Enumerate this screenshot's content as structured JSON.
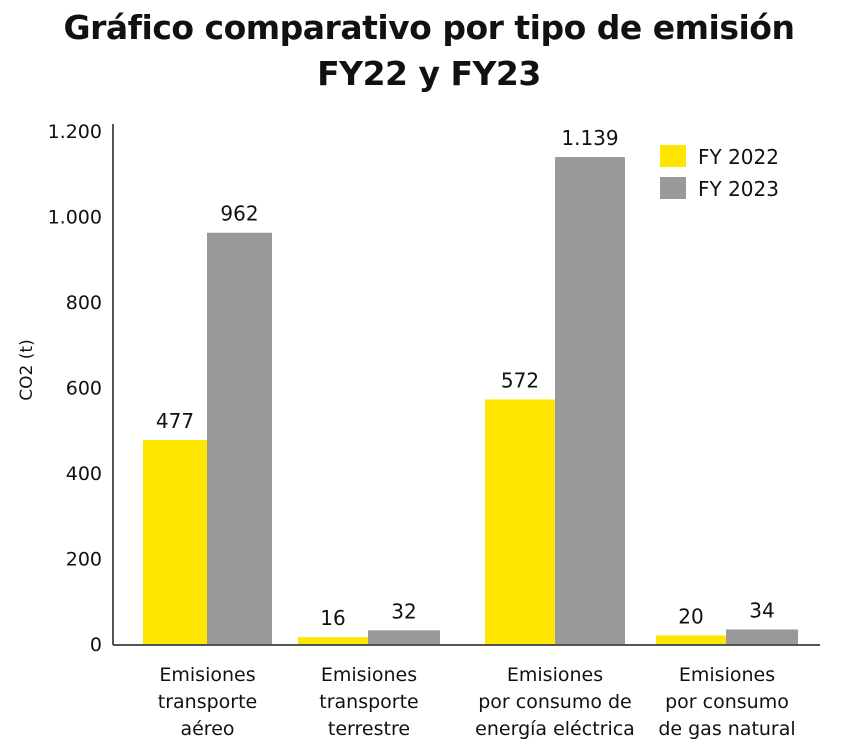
{
  "chart_data": {
    "type": "bar",
    "title": "Gráfico comparativo por tipo de emisión",
    "subtitle": "FY22 y FY23",
    "ylabel": "CO2 (t)",
    "xlabel": "",
    "ylim": [
      0,
      1200
    ],
    "yticks": [
      0,
      200,
      400,
      600,
      800,
      1000,
      1200
    ],
    "ytick_labels": [
      "0",
      "200",
      "400",
      "600",
      "800",
      "1.000",
      "1.200"
    ],
    "categories": [
      [
        "Emisiones",
        "transporte",
        "aéreo"
      ],
      [
        "Emisiones",
        "transporte",
        "terrestre"
      ],
      [
        "Emisiones",
        "por consumo de",
        "energía eléctrica"
      ],
      [
        "Emisiones",
        "por consumo",
        "de gas natural"
      ]
    ],
    "series": [
      {
        "name": "FY 2022",
        "color": "#FFE600",
        "values": [
          477,
          16,
          572,
          20
        ],
        "labels": [
          "477",
          "16",
          "572",
          "20"
        ]
      },
      {
        "name": "FY 2023",
        "color": "#999999",
        "values": [
          962,
          32,
          1139,
          34
        ],
        "labels": [
          "962",
          "32",
          "1.139",
          "34"
        ]
      }
    ],
    "grid": false,
    "legend_position": "top-right"
  }
}
